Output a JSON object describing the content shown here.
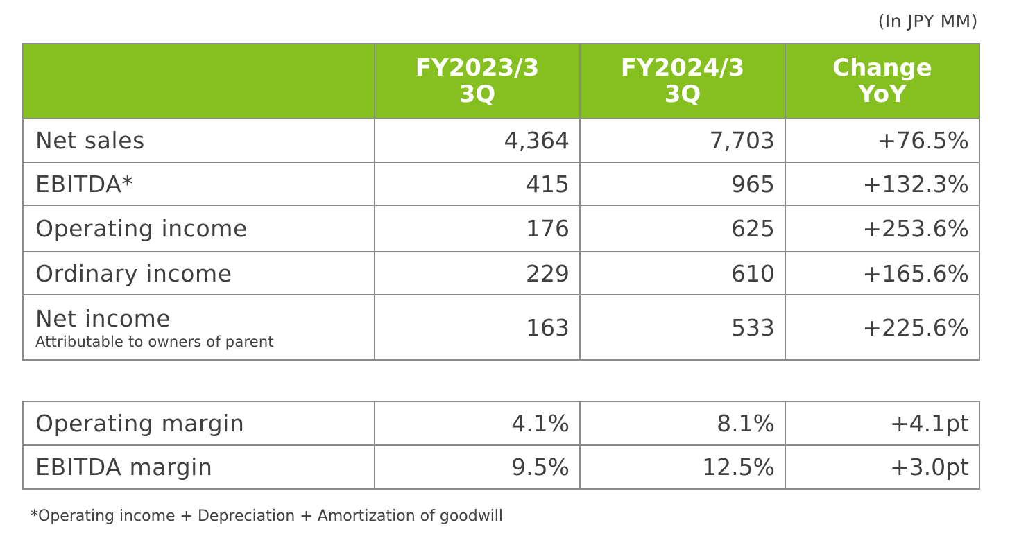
{
  "unit_note": "(In JPY MM)",
  "header": {
    "col1_line1": "FY2023/3",
    "col1_line2": "3Q",
    "col2_line1": "FY2024/3",
    "col2_line2": "3Q",
    "col3_line1": "Change",
    "col3_line2": "YoY"
  },
  "rows": [
    {
      "label": "Net sales",
      "fy2023": "4,364",
      "fy2024": "7,703",
      "change": "+76.5%"
    },
    {
      "label": "EBITDA*",
      "fy2023": "415",
      "fy2024": "965",
      "change": "+132.3%"
    },
    {
      "label": "Operating income",
      "fy2023": "176",
      "fy2024": "625",
      "change": "+253.6%"
    },
    {
      "label": "Ordinary income",
      "fy2023": "229",
      "fy2024": "610",
      "change": "+165.6%"
    },
    {
      "label": "Net income",
      "sublabel": "Attributable to owners of parent",
      "fy2023": "163",
      "fy2024": "533",
      "change": "+225.6%"
    }
  ],
  "margins": [
    {
      "label": "Operating margin",
      "fy2023": "4.1%",
      "fy2024": "8.1%",
      "change": "+4.1pt"
    },
    {
      "label": "EBITDA margin",
      "fy2023": "9.5%",
      "fy2024": "12.5%",
      "change": "+3.0pt"
    }
  ],
  "footnote": "*Operating income + Depreciation + Amortization of goodwill",
  "colors": {
    "header_bg": "#86bf20",
    "header_text": "#ffffff",
    "border": "#8a8a8a",
    "text": "#404040"
  }
}
